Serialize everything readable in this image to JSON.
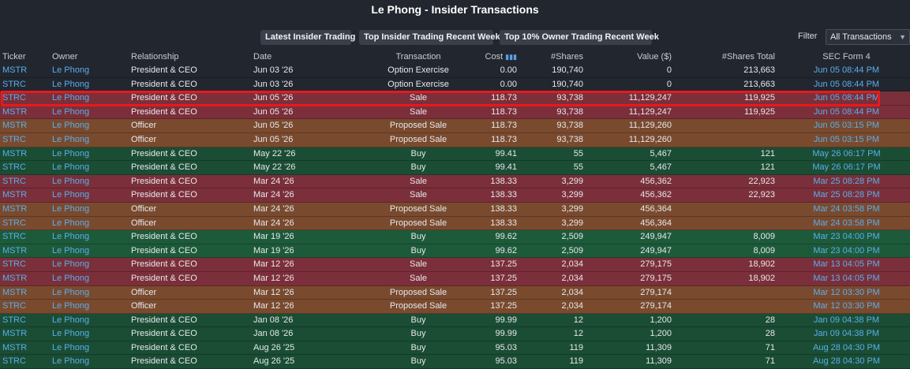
{
  "page": {
    "title": "Le Phong - Insider Transactions"
  },
  "toolbar": {
    "buttons": [
      "Latest Insider Trading",
      "Top Insider Trading Recent Week",
      "Top 10% Owner Trading Recent Week"
    ],
    "filter_label": "Filter",
    "filter_value": "All Transactions"
  },
  "table": {
    "columns": [
      "Ticker",
      "Owner",
      "Relationship",
      "Date",
      "Transaction",
      "Cost",
      "#Shares",
      "Value ($)",
      "#Shares Total",
      "SEC Form 4"
    ],
    "rows": [
      {
        "ticker": "MSTR",
        "owner": "Le Phong",
        "relationship": "President & CEO",
        "date": "Jun 03 '26",
        "transaction": "Option Exercise",
        "cost": "0.00",
        "shares": "190,740",
        "value": "0",
        "total": "213,663",
        "sec": "Jun 05 08:44 PM",
        "kind": "option"
      },
      {
        "ticker": "STRC",
        "owner": "Le Phong",
        "relationship": "President & CEO",
        "date": "Jun 03 '26",
        "transaction": "Option Exercise",
        "cost": "0.00",
        "shares": "190,740",
        "value": "0",
        "total": "213,663",
        "sec": "Jun 05 08:44 PM",
        "kind": "option"
      },
      {
        "ticker": "STRC",
        "owner": "Le Phong",
        "relationship": "President & CEO",
        "date": "Jun 05 '26",
        "transaction": "Sale",
        "cost": "118.73",
        "shares": "93,738",
        "value": "11,129,247",
        "total": "119,925",
        "sec": "Jun 05 08:44 PM",
        "kind": "sale"
      },
      {
        "ticker": "MSTR",
        "owner": "Le Phong",
        "relationship": "President & CEO",
        "date": "Jun 05 '26",
        "transaction": "Sale",
        "cost": "118.73",
        "shares": "93,738",
        "value": "11,129,247",
        "total": "119,925",
        "sec": "Jun 05 08:44 PM",
        "kind": "sale"
      },
      {
        "ticker": "MSTR",
        "owner": "Le Phong",
        "relationship": "Officer",
        "date": "Jun 05 '26",
        "transaction": "Proposed Sale",
        "cost": "118.73",
        "shares": "93,738",
        "value": "11,129,260",
        "total": "",
        "sec": "Jun 05 03:15 PM",
        "kind": "proposed"
      },
      {
        "ticker": "STRC",
        "owner": "Le Phong",
        "relationship": "Officer",
        "date": "Jun 05 '26",
        "transaction": "Proposed Sale",
        "cost": "118.73",
        "shares": "93,738",
        "value": "11,129,260",
        "total": "",
        "sec": "Jun 05 03:15 PM",
        "kind": "proposed"
      },
      {
        "ticker": "MSTR",
        "owner": "Le Phong",
        "relationship": "President & CEO",
        "date": "May 22 '26",
        "transaction": "Buy",
        "cost": "99.41",
        "shares": "55",
        "value": "5,467",
        "total": "121",
        "sec": "May 26 06:17 PM",
        "kind": "buy"
      },
      {
        "ticker": "STRC",
        "owner": "Le Phong",
        "relationship": "President & CEO",
        "date": "May 22 '26",
        "transaction": "Buy",
        "cost": "99.41",
        "shares": "55",
        "value": "5,467",
        "total": "121",
        "sec": "May 26 06:17 PM",
        "kind": "buy"
      },
      {
        "ticker": "STRC",
        "owner": "Le Phong",
        "relationship": "President & CEO",
        "date": "Mar 24 '26",
        "transaction": "Sale",
        "cost": "138.33",
        "shares": "3,299",
        "value": "456,362",
        "total": "22,923",
        "sec": "Mar 25 08:28 PM",
        "kind": "sale"
      },
      {
        "ticker": "MSTR",
        "owner": "Le Phong",
        "relationship": "President & CEO",
        "date": "Mar 24 '26",
        "transaction": "Sale",
        "cost": "138.33",
        "shares": "3,299",
        "value": "456,362",
        "total": "22,923",
        "sec": "Mar 25 08:28 PM",
        "kind": "sale"
      },
      {
        "ticker": "MSTR",
        "owner": "Le Phong",
        "relationship": "Officer",
        "date": "Mar 24 '26",
        "transaction": "Proposed Sale",
        "cost": "138.33",
        "shares": "3,299",
        "value": "456,364",
        "total": "",
        "sec": "Mar 24 03:58 PM",
        "kind": "proposed"
      },
      {
        "ticker": "STRC",
        "owner": "Le Phong",
        "relationship": "Officer",
        "date": "Mar 24 '26",
        "transaction": "Proposed Sale",
        "cost": "138.33",
        "shares": "3,299",
        "value": "456,364",
        "total": "",
        "sec": "Mar 24 03:58 PM",
        "kind": "proposed"
      },
      {
        "ticker": "STRC",
        "owner": "Le Phong",
        "relationship": "President & CEO",
        "date": "Mar 19 '26",
        "transaction": "Buy",
        "cost": "99.62",
        "shares": "2,509",
        "value": "249,947",
        "total": "8,009",
        "sec": "Mar 23 04:00 PM",
        "kind": "buy"
      },
      {
        "ticker": "MSTR",
        "owner": "Le Phong",
        "relationship": "President & CEO",
        "date": "Mar 19 '26",
        "transaction": "Buy",
        "cost": "99.62",
        "shares": "2,509",
        "value": "249,947",
        "total": "8,009",
        "sec": "Mar 23 04:00 PM",
        "kind": "buy"
      },
      {
        "ticker": "STRC",
        "owner": "Le Phong",
        "relationship": "President & CEO",
        "date": "Mar 12 '26",
        "transaction": "Sale",
        "cost": "137.25",
        "shares": "2,034",
        "value": "279,175",
        "total": "18,902",
        "sec": "Mar 13 04:05 PM",
        "kind": "sale"
      },
      {
        "ticker": "MSTR",
        "owner": "Le Phong",
        "relationship": "President & CEO",
        "date": "Mar 12 '26",
        "transaction": "Sale",
        "cost": "137.25",
        "shares": "2,034",
        "value": "279,175",
        "total": "18,902",
        "sec": "Mar 13 04:05 PM",
        "kind": "sale"
      },
      {
        "ticker": "MSTR",
        "owner": "Le Phong",
        "relationship": "Officer",
        "date": "Mar 12 '26",
        "transaction": "Proposed Sale",
        "cost": "137.25",
        "shares": "2,034",
        "value": "279,174",
        "total": "",
        "sec": "Mar 12 03:30 PM",
        "kind": "proposed"
      },
      {
        "ticker": "STRC",
        "owner": "Le Phong",
        "relationship": "Officer",
        "date": "Mar 12 '26",
        "transaction": "Proposed Sale",
        "cost": "137.25",
        "shares": "2,034",
        "value": "279,174",
        "total": "",
        "sec": "Mar 12 03:30 PM",
        "kind": "proposed"
      },
      {
        "ticker": "STRC",
        "owner": "Le Phong",
        "relationship": "President & CEO",
        "date": "Jan 08 '26",
        "transaction": "Buy",
        "cost": "99.99",
        "shares": "12",
        "value": "1,200",
        "total": "28",
        "sec": "Jan 09 04:38 PM",
        "kind": "buy"
      },
      {
        "ticker": "MSTR",
        "owner": "Le Phong",
        "relationship": "President & CEO",
        "date": "Jan 08 '26",
        "transaction": "Buy",
        "cost": "99.99",
        "shares": "12",
        "value": "1,200",
        "total": "28",
        "sec": "Jan 09 04:38 PM",
        "kind": "buy"
      },
      {
        "ticker": "MSTR",
        "owner": "Le Phong",
        "relationship": "President & CEO",
        "date": "Aug 26 '25",
        "transaction": "Buy",
        "cost": "95.03",
        "shares": "119",
        "value": "11,309",
        "total": "71",
        "sec": "Aug 28 04:30 PM",
        "kind": "buy"
      },
      {
        "ticker": "STRC",
        "owner": "Le Phong",
        "relationship": "President & CEO",
        "date": "Aug 26 '25",
        "transaction": "Buy",
        "cost": "95.03",
        "shares": "119",
        "value": "11,309",
        "total": "71",
        "sec": "Aug 28 04:30 PM",
        "kind": "buy"
      }
    ]
  },
  "colors": {
    "background": "#22262f",
    "sale_row": "#7b2f3a",
    "proposed_row": "#7a4a2e",
    "buy_row": "#1d5a3a",
    "link": "#5aaeea",
    "highlight": "#e8191c"
  }
}
